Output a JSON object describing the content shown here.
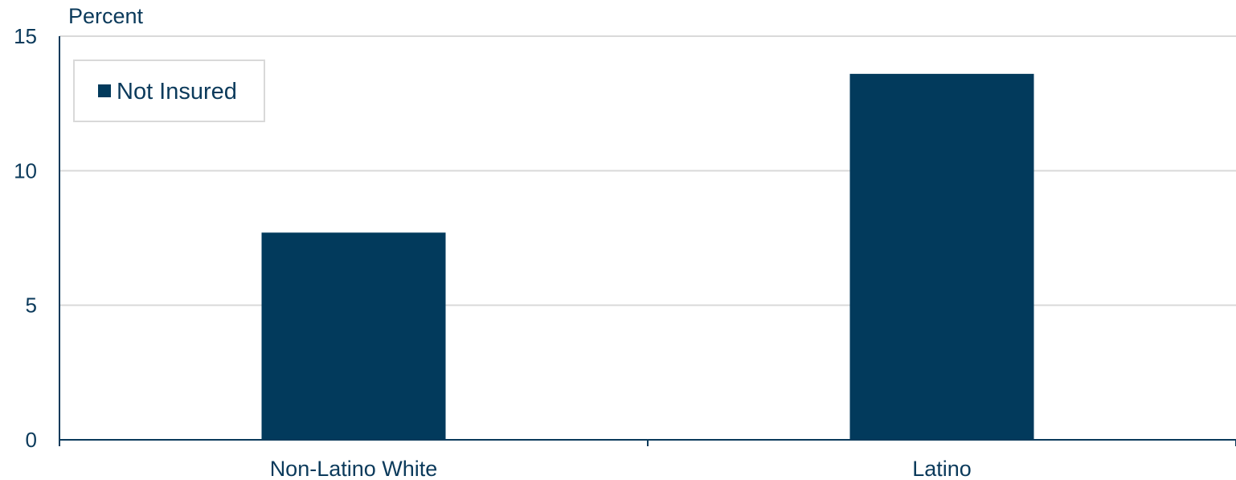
{
  "chart_data": {
    "type": "bar",
    "ylabel": "Percent",
    "xlabel": "",
    "categories": [
      "Non-Latino White",
      "Latino"
    ],
    "series": [
      {
        "name": "Not Insured",
        "values": [
          7.7,
          13.6
        ]
      }
    ],
    "ylim": [
      0,
      15
    ],
    "yticks": [
      "0",
      "5",
      "10",
      "15"
    ],
    "grid": true,
    "legend_position": "top-left",
    "colors": {
      "bar": "#023a5c",
      "axis": "#0b3a5b",
      "grid": "#d9d9d9",
      "legend_border": "#d9d9d9"
    }
  }
}
